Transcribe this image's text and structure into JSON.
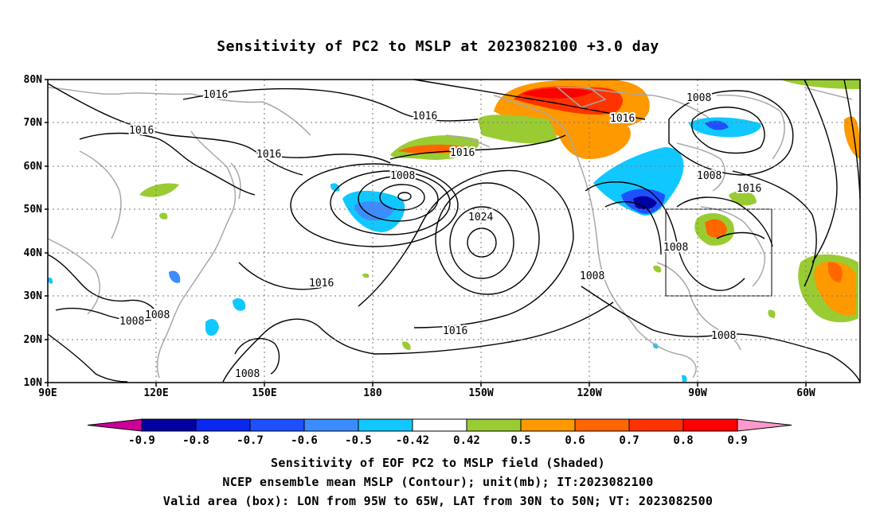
{
  "title": "Sensitivity of PC2 to MSLP at 2023082100 +3.0 day",
  "lat_ticks": [
    "80N",
    "70N",
    "60N",
    "50N",
    "40N",
    "30N",
    "20N",
    "10N"
  ],
  "lon_ticks": [
    "90E",
    "120E",
    "150E",
    "180",
    "150W",
    "120W",
    "90W",
    "60W"
  ],
  "contour_labels": {
    "l1": "1016",
    "l2": "1016",
    "l3": "1016",
    "l4": "1016",
    "l5": "1016",
    "l6": "1016",
    "l7": "1016",
    "l8": "1016",
    "l9": "1016",
    "l10": "1008",
    "l11": "1008",
    "l12": "1008",
    "l13": "1008",
    "l14": "1008",
    "l15": "1008",
    "l16": "1008",
    "l17": "1008",
    "l18": "1024",
    "l19": "1016",
    "l20": "1016"
  },
  "colorbar": {
    "labels": [
      "-0.9",
      "-0.8",
      "-0.7",
      "-0.6",
      "-0.5",
      "-0.42",
      "0.42",
      "0.5",
      "0.6",
      "0.7",
      "0.8",
      "0.9"
    ],
    "colors": [
      "#0000a0",
      "#0a28f0",
      "#1e50ff",
      "#3c8cff",
      "#10c8ff",
      "#ffffff",
      "#99cc33",
      "#ff9900",
      "#ff6600",
      "#ff3300",
      "#ff0000"
    ],
    "under_color": "#cc0099",
    "over_color": "#ff99cc"
  },
  "caption": {
    "line1": "Sensitivity of EOF PC2 to MSLP field (Shaded)",
    "line2": "NCEP ensemble mean MSLP (Contour); unit(mb); IT:2023082100",
    "line3": "Valid area (box): LON from 95W to 65W, LAT from 30N to 50N; VT: 2023082500"
  }
}
